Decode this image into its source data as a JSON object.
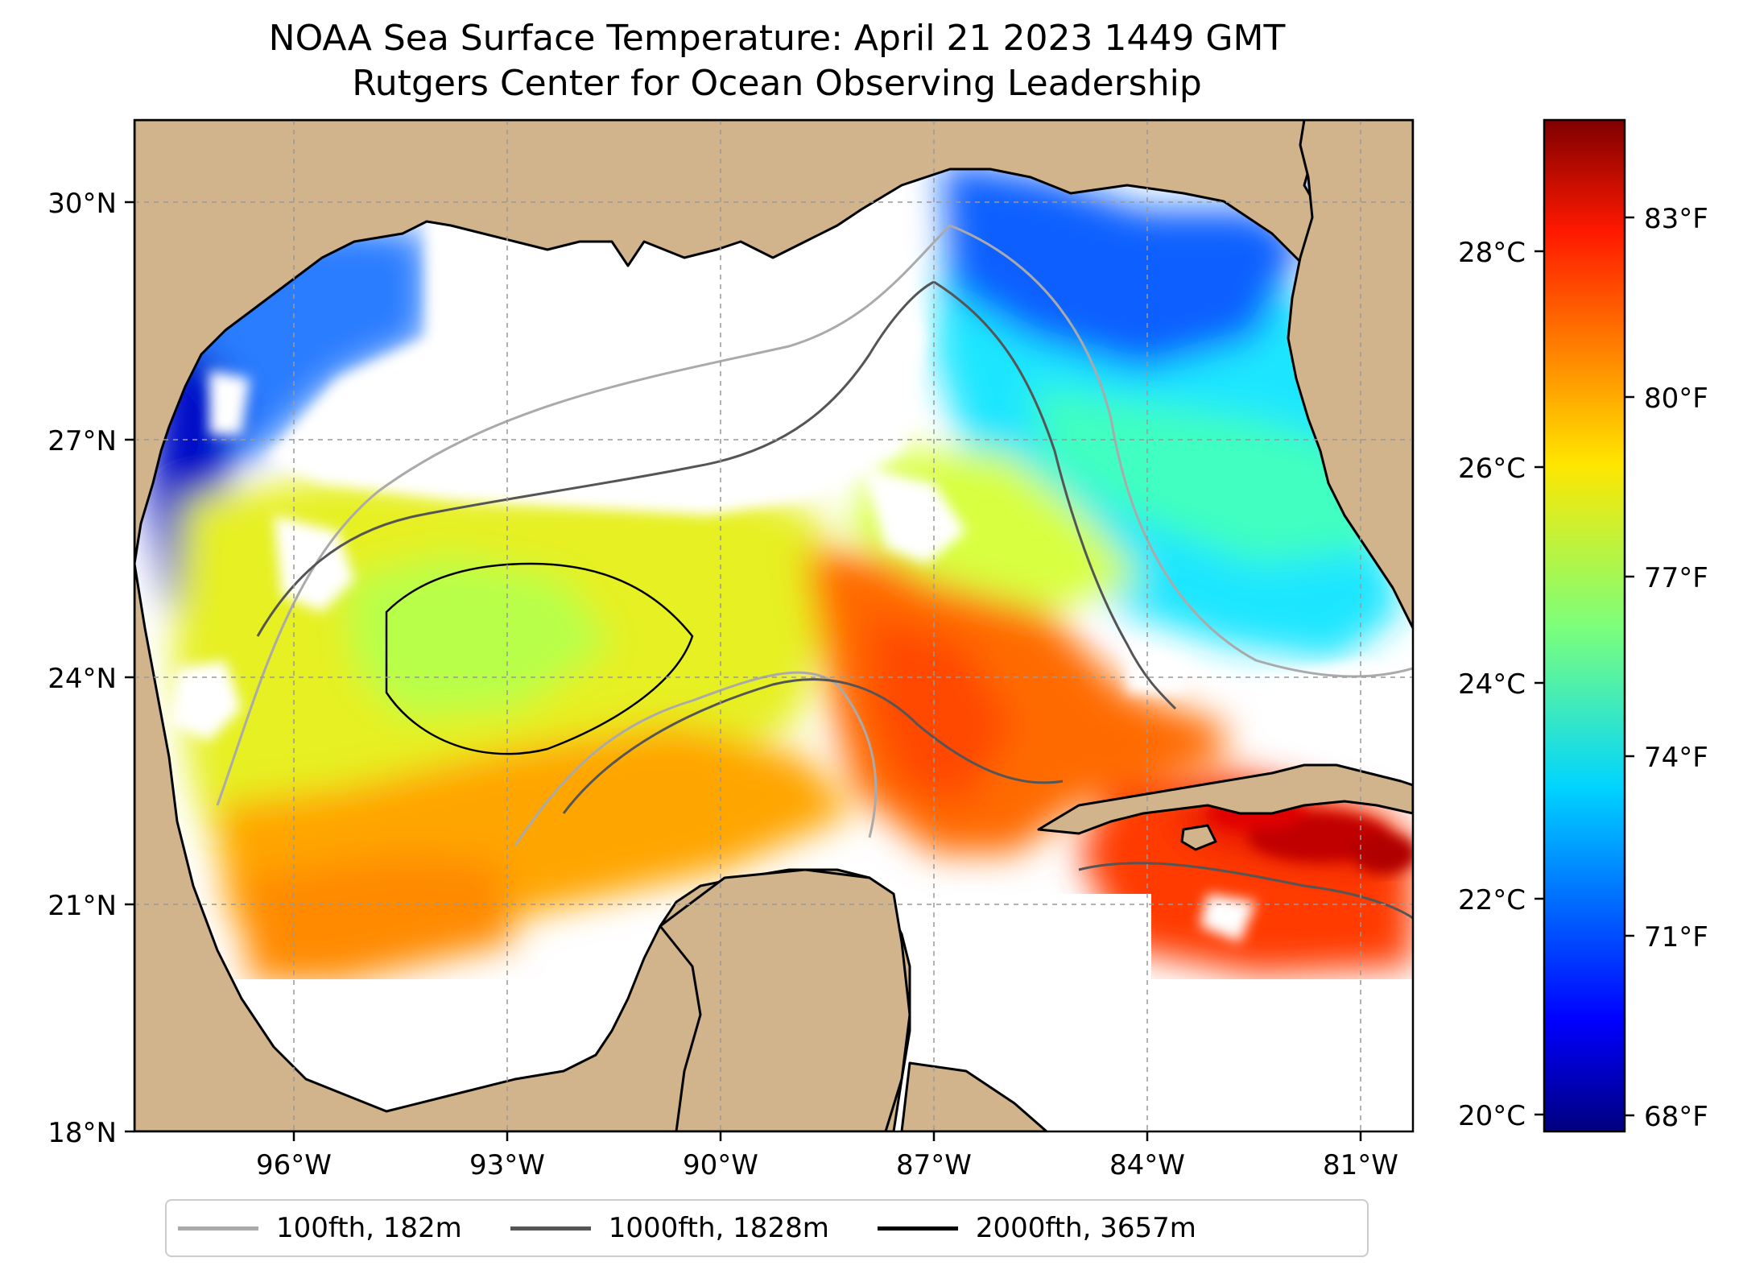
{
  "title": {
    "line1": "NOAA Sea Surface Temperature: April 21 2023 1449 GMT",
    "line2": "Rutgers Center for Ocean Observing Leadership"
  },
  "map": {
    "region": "Gulf of Mexico",
    "lon_range": [
      -98.2,
      -80.2
    ],
    "lat_range": [
      18,
      31
    ],
    "lat_ticks": [
      "30°N",
      "27°N",
      "24°N",
      "21°N",
      "18°N"
    ],
    "lon_ticks": [
      "96°W",
      "93°W",
      "90°W",
      "87°W",
      "84°W",
      "81°W"
    ],
    "land_color": "#d2b48c",
    "cloud_color": "#ffffff",
    "gridlines": true
  },
  "colorbar": {
    "colormap": "jet",
    "celsius_ticks": [
      "28°C",
      "26°C",
      "24°C",
      "22°C",
      "20°C"
    ],
    "fahrenheit_ticks": [
      "83°F",
      "80°F",
      "77°F",
      "74°F",
      "71°F",
      "68°F"
    ],
    "range_c": [
      19.8,
      29.6
    ]
  },
  "legend": {
    "items": [
      {
        "label": "100fth, 182m",
        "color": "#aaaaaa"
      },
      {
        "label": "1000fth, 1828m",
        "color": "#555555"
      },
      {
        "label": "2000fth, 3657m",
        "color": "#000000"
      }
    ]
  }
}
